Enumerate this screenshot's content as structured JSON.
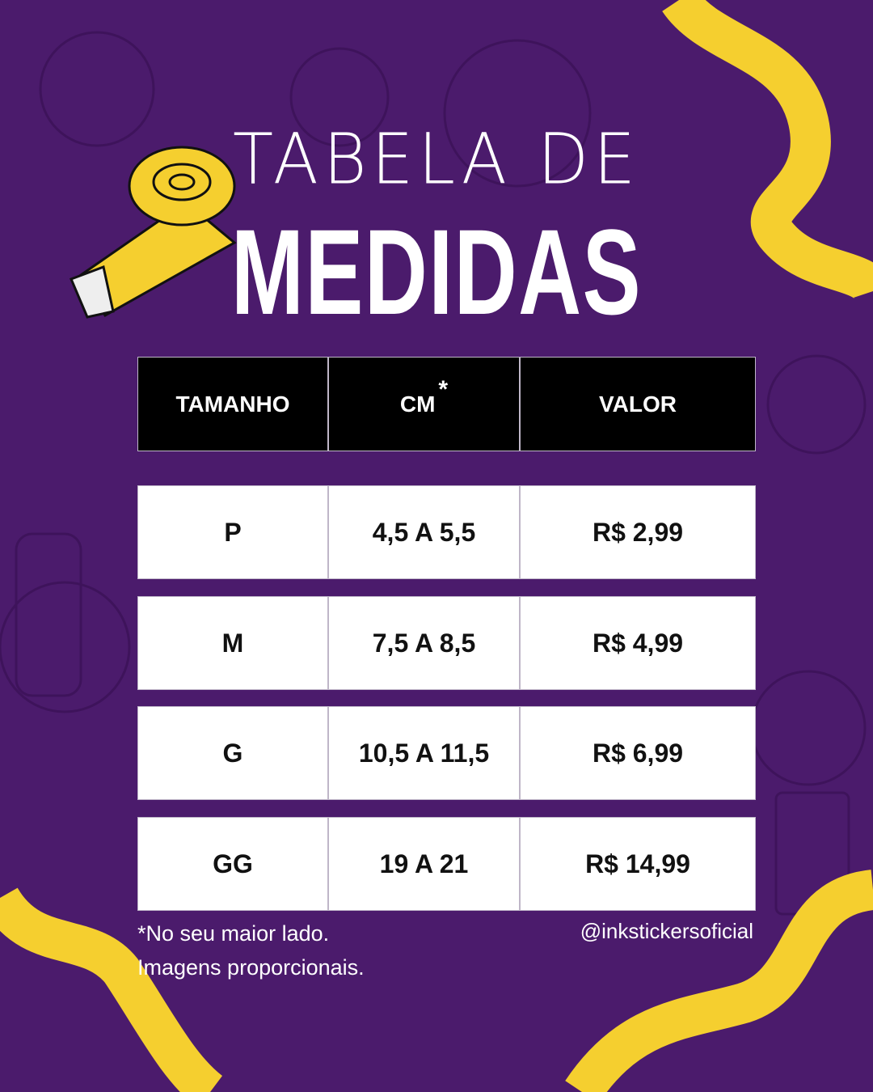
{
  "title": {
    "line1": "TABELA DE",
    "line2": "MEDIDAS"
  },
  "table": {
    "headers": [
      "TAMANHO",
      "CM",
      "VALOR"
    ],
    "cm_marker": "*",
    "rows": [
      {
        "size": "P",
        "cm": "4,5 A 5,5",
        "price": "R$ 2,99"
      },
      {
        "size": "M",
        "cm": "7,5 A 8,5",
        "price": "R$ 4,99"
      },
      {
        "size": "G",
        "cm": "10,5 A 11,5",
        "price": "R$ 6,99"
      },
      {
        "size": "GG",
        "cm": "19 A 21",
        "price": "R$ 14,99"
      }
    ]
  },
  "footer": {
    "note_line1": "*No seu maior lado.",
    "note_line2": "Imagens proporcionais.",
    "handle": "@inkstickersoficial"
  },
  "colors": {
    "background": "#4b1b6c",
    "tape": "#f5cf2f",
    "header": "#000000",
    "cell": "#ffffff"
  }
}
